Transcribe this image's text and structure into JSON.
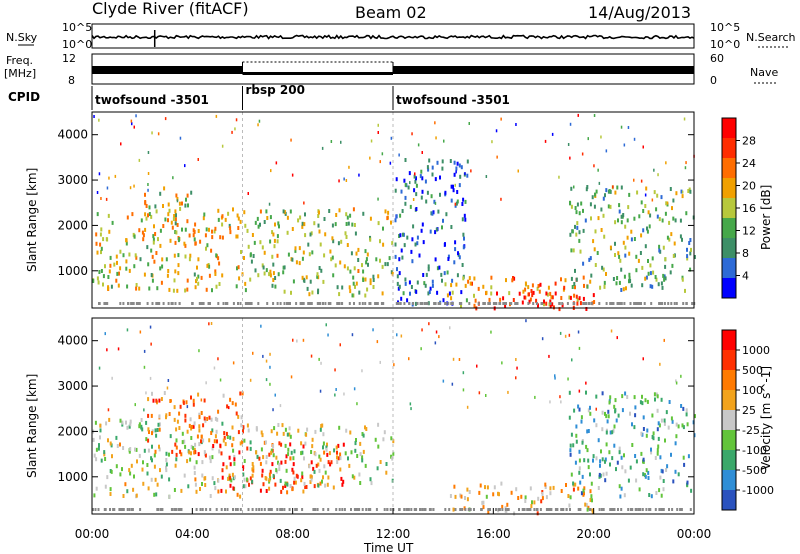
{
  "header": {
    "station": "Clyde River (fitACF)",
    "beam": "Beam 02",
    "date": "14/Aug/2013"
  },
  "strip_labels": {
    "nsky": "N.Sky",
    "nsky_ticks": [
      "10^5",
      "10^0"
    ],
    "nsearch": "N.Search",
    "nsearch_ticks": [
      "10^5",
      "10^0"
    ],
    "freq_top": "Freq.",
    "freq_unit": "[MHz]",
    "freq_ticks": [
      "12",
      "8"
    ],
    "nave": "Nave",
    "nave_ticks": [
      "60",
      "0"
    ],
    "cpid": "CPID"
  },
  "cpid_segments": [
    {
      "label": "twofsound -3501",
      "start_hour": 0,
      "end_hour": 6
    },
    {
      "label": "rbsp 200",
      "start_hour": 6,
      "end_hour": 12
    },
    {
      "label": "twofsound -3501",
      "start_hour": 12,
      "end_hour": 24
    }
  ],
  "colors": {
    "power": [
      "#0000ff",
      "#2d6ad6",
      "#3d8f67",
      "#46a84a",
      "#b7c83c",
      "#f0a000",
      "#ff6d00",
      "#ff2d00",
      "#ff0000"
    ],
    "velocity": [
      "#2a52be",
      "#2f8ed6",
      "#3aa86a",
      "#62c43a",
      "#c8c8c8",
      "#f2a31c",
      "#ff7a00",
      "#ff3000",
      "#ff0000"
    ]
  },
  "chart_data": [
    {
      "type": "heatmap",
      "name": "power",
      "xlabel": "Time UT",
      "ylabel": "Slant Range [km]",
      "xlim": [
        0,
        24
      ],
      "ylim": [
        180,
        4500
      ],
      "x_ticks": [
        "00:00",
        "04:00",
        "08:00",
        "12:00",
        "16:00",
        "20:00",
        "00:00"
      ],
      "y_ticks": [
        1000,
        2000,
        3000,
        4000
      ],
      "colorbar": {
        "label": "Power [dB]",
        "ticks": [
          "28",
          "24",
          "20",
          "16",
          "12",
          "8",
          "4"
        ]
      },
      "regions": [
        {
          "t": [
            0,
            6
          ],
          "r": [
            600,
            2400
          ],
          "level": 0.55
        },
        {
          "t": [
            2,
            4
          ],
          "r": [
            1800,
            2900
          ],
          "level": 0.5
        },
        {
          "t": [
            6,
            12
          ],
          "r": [
            500,
            2400
          ],
          "level": 0.45
        },
        {
          "t": [
            12,
            15
          ],
          "r": [
            300,
            3500
          ],
          "level": 0.15
        },
        {
          "t": [
            14,
            20
          ],
          "r": [
            200,
            900
          ],
          "level": 0.7
        },
        {
          "t": [
            16,
            20
          ],
          "r": [
            200,
            600
          ],
          "level": 0.95
        },
        {
          "t": [
            19,
            24
          ],
          "r": [
            600,
            2900
          ],
          "level": 0.4
        }
      ]
    },
    {
      "type": "heatmap",
      "name": "velocity",
      "xlabel": "Time UT",
      "ylabel": "Slant Range [km]",
      "xlim": [
        0,
        24
      ],
      "ylim": [
        180,
        4500
      ],
      "x_ticks": [
        "00:00",
        "04:00",
        "08:00",
        "12:00",
        "16:00",
        "20:00",
        "00:00"
      ],
      "y_ticks": [
        1000,
        2000,
        3000,
        4000
      ],
      "colorbar": {
        "label": "Velocity [m s^-1]",
        "ticks": [
          "1000",
          "500",
          "100",
          "25",
          "-25",
          "-100",
          "-500",
          "-1000"
        ]
      },
      "regions": [
        {
          "t": [
            0,
            6
          ],
          "r": [
            600,
            2300
          ],
          "level": 0.45
        },
        {
          "t": [
            2,
            6
          ],
          "r": [
            1500,
            2900
          ],
          "level": 0.7
        },
        {
          "t": [
            5,
            10
          ],
          "r": [
            700,
            1800
          ],
          "level": 0.8
        },
        {
          "t": [
            6,
            12
          ],
          "r": [
            800,
            2200
          ],
          "level": 0.45
        },
        {
          "t": [
            14,
            20
          ],
          "r": [
            200,
            900
          ],
          "level": 0.6
        },
        {
          "t": [
            19,
            24
          ],
          "r": [
            600,
            2900
          ],
          "level": 0.3
        }
      ]
    }
  ],
  "footer": {
    "time_label": "Time UT"
  }
}
